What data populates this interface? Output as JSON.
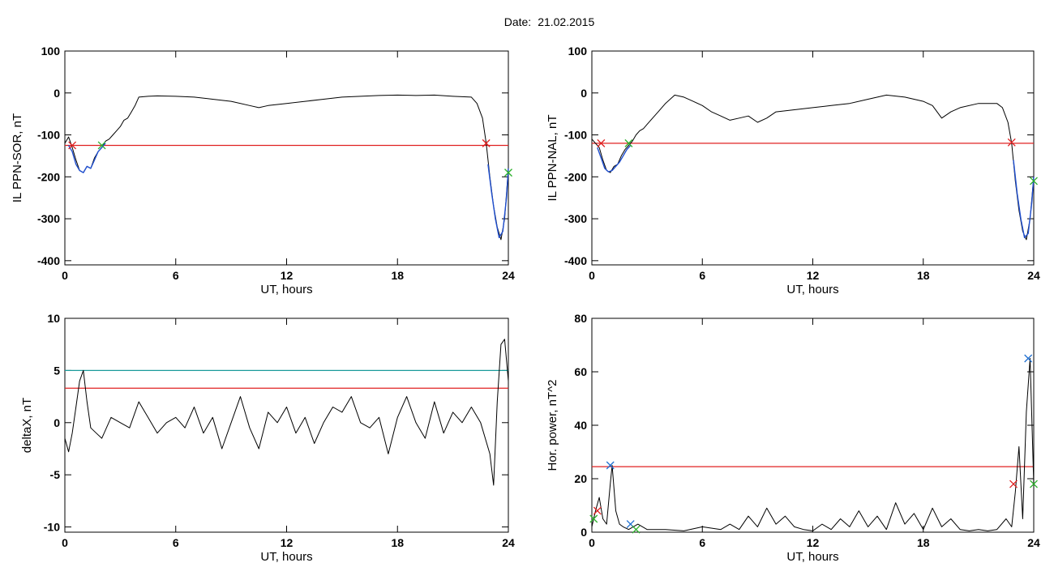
{
  "header": {
    "date_label": "Date:",
    "date_value": "21.02.2015"
  },
  "chart_data": [
    {
      "type": "line",
      "xlabel": "UT, hours",
      "ylabel": "IL PPN-SOR, nT",
      "xlim": [
        0,
        24
      ],
      "ylim": [
        -410,
        100
      ],
      "xticks": [
        0,
        6,
        12,
        18,
        24
      ],
      "yticks": [
        100,
        0,
        -100,
        -200,
        -300,
        -400
      ],
      "threshold": {
        "value": -125,
        "color": "#e02020"
      },
      "series": [
        {
          "color": "#000000",
          "x": [
            0,
            0.2,
            0.4,
            0.6,
            0.8,
            1.0,
            1.2,
            1.4,
            1.6,
            1.8,
            2.0,
            2.2,
            2.4,
            2.6,
            2.8,
            3.0,
            3.2,
            3.4,
            3.6,
            3.8,
            4.0,
            4.5,
            5,
            6,
            7,
            8,
            9,
            10,
            10.5,
            11,
            12,
            13,
            14,
            15,
            16,
            17,
            18,
            19,
            20,
            21,
            22,
            22.3,
            22.6,
            22.8,
            23.0,
            23.2,
            23.4,
            23.6,
            23.8,
            24.0
          ],
          "y": [
            -120,
            -105,
            -130,
            -160,
            -185,
            -190,
            -175,
            -180,
            -155,
            -140,
            -130,
            -115,
            -110,
            -100,
            -90,
            -80,
            -65,
            -60,
            -45,
            -30,
            -10,
            -8,
            -7,
            -8,
            -10,
            -15,
            -20,
            -30,
            -35,
            -30,
            -25,
            -20,
            -15,
            -10,
            -8,
            -6,
            -5,
            -6,
            -5,
            -8,
            -10,
            -25,
            -60,
            -120,
            -200,
            -270,
            -320,
            -350,
            -300,
            -180
          ]
        },
        {
          "color": "#1f4fd0",
          "x": [
            0.2,
            0.4,
            0.6,
            0.8,
            1.0,
            1.2,
            1.4,
            1.6,
            1.8,
            2.0,
            2.2
          ],
          "y": [
            -125,
            -140,
            -170,
            -185,
            -190,
            -175,
            -180,
            -160,
            -140,
            -130,
            -120
          ]
        },
        {
          "color": "#1f4fd0",
          "x": [
            22.9,
            23.1,
            23.3,
            23.5,
            23.7,
            23.9,
            24.0
          ],
          "y": [
            -170,
            -240,
            -300,
            -345,
            -330,
            -250,
            -180
          ]
        }
      ],
      "markers": [
        {
          "x": 0.4,
          "y": -125,
          "color": "#e02020"
        },
        {
          "x": 2.0,
          "y": -125,
          "color": "#2bb02b"
        },
        {
          "x": 22.8,
          "y": -120,
          "color": "#e02020"
        },
        {
          "x": 24.0,
          "y": -190,
          "color": "#2bb02b"
        }
      ]
    },
    {
      "type": "line",
      "xlabel": "UT, hours",
      "ylabel": "IL PPN-NAL, nT",
      "xlim": [
        0,
        24
      ],
      "ylim": [
        -410,
        100
      ],
      "xticks": [
        0,
        6,
        12,
        18,
        24
      ],
      "yticks": [
        100,
        0,
        -100,
        -200,
        -300,
        -400
      ],
      "threshold": {
        "value": -120,
        "color": "#e02020"
      },
      "series": [
        {
          "color": "#000000",
          "x": [
            0,
            0.2,
            0.4,
            0.6,
            0.8,
            1.0,
            1.2,
            1.4,
            1.6,
            1.8,
            2.0,
            2.2,
            2.4,
            2.6,
            2.8,
            3.0,
            3.3,
            3.6,
            4.0,
            4.5,
            5,
            5.5,
            6,
            6.5,
            7,
            7.5,
            8,
            8.5,
            9,
            9.5,
            10,
            11,
            12,
            13,
            14,
            15,
            16,
            17,
            18,
            18.5,
            19,
            19.5,
            20,
            21,
            22,
            22.3,
            22.6,
            22.8,
            23.0,
            23.2,
            23.4,
            23.6,
            23.8,
            24.0
          ],
          "y": [
            -110,
            -120,
            -130,
            -160,
            -185,
            -190,
            -175,
            -170,
            -150,
            -135,
            -125,
            -115,
            -100,
            -90,
            -85,
            -75,
            -60,
            -45,
            -25,
            -5,
            -10,
            -20,
            -30,
            -45,
            -55,
            -65,
            -60,
            -55,
            -70,
            -60,
            -45,
            -40,
            -35,
            -30,
            -25,
            -15,
            -5,
            -10,
            -20,
            -30,
            -60,
            -45,
            -35,
            -25,
            -25,
            -35,
            -70,
            -120,
            -210,
            -280,
            -330,
            -350,
            -300,
            -200
          ]
        },
        {
          "color": "#1f4fd0",
          "x": [
            0.3,
            0.5,
            0.7,
            0.9,
            1.1,
            1.3,
            1.5,
            1.7,
            1.9,
            2.1
          ],
          "y": [
            -130,
            -155,
            -180,
            -188,
            -185,
            -175,
            -165,
            -150,
            -135,
            -125
          ]
        },
        {
          "color": "#1f4fd0",
          "x": [
            22.9,
            23.1,
            23.3,
            23.5,
            23.7,
            23.9,
            24.0
          ],
          "y": [
            -160,
            -240,
            -300,
            -345,
            -335,
            -260,
            -200
          ]
        }
      ],
      "markers": [
        {
          "x": 0.5,
          "y": -120,
          "color": "#e02020"
        },
        {
          "x": 2.0,
          "y": -120,
          "color": "#2bb02b"
        },
        {
          "x": 22.8,
          "y": -118,
          "color": "#e02020"
        },
        {
          "x": 24.0,
          "y": -210,
          "color": "#2bb02b"
        }
      ]
    },
    {
      "type": "line",
      "xlabel": "UT, hours",
      "ylabel": "deltaX, nT",
      "xlim": [
        0,
        24
      ],
      "ylim": [
        -10.5,
        10
      ],
      "xticks": [
        0,
        6,
        12,
        18,
        24
      ],
      "yticks": [
        10,
        5,
        0,
        -5,
        -10
      ],
      "thresholds": [
        {
          "value": 5.0,
          "color": "#1a9a9a"
        },
        {
          "value": 3.3,
          "color": "#e02020"
        }
      ],
      "series": [
        {
          "color": "#000000",
          "x": [
            0,
            0.2,
            0.4,
            0.6,
            0.8,
            1.0,
            1.2,
            1.4,
            1.7,
            2.0,
            2.5,
            3.0,
            3.5,
            4.0,
            4.5,
            5.0,
            5.5,
            6.0,
            6.5,
            7.0,
            7.5,
            8.0,
            8.5,
            9.0,
            9.5,
            10.0,
            10.5,
            11.0,
            11.5,
            12.0,
            12.5,
            13.0,
            13.5,
            14.0,
            14.5,
            15.0,
            15.5,
            16.0,
            16.5,
            17.0,
            17.5,
            18.0,
            18.5,
            19.0,
            19.5,
            20.0,
            20.5,
            21.0,
            21.5,
            22.0,
            22.5,
            23.0,
            23.2,
            23.4,
            23.6,
            23.8,
            24.0
          ],
          "y": [
            -1.5,
            -2.8,
            -1.0,
            1.5,
            4.0,
            5.0,
            2.0,
            -0.5,
            -1.0,
            -1.5,
            0.5,
            0.0,
            -0.5,
            2.0,
            0.5,
            -1.0,
            0.0,
            0.5,
            -0.5,
            1.5,
            -1.0,
            0.5,
            -2.5,
            0.0,
            2.5,
            -0.5,
            -2.5,
            1.0,
            0.0,
            1.5,
            -1.0,
            0.5,
            -2.0,
            0.0,
            1.5,
            1.0,
            2.5,
            0.0,
            -0.5,
            0.5,
            -3.0,
            0.5,
            2.5,
            0.0,
            -1.5,
            2.0,
            -1.0,
            1.0,
            0.0,
            1.5,
            0.0,
            -3.0,
            -6.0,
            2.0,
            7.5,
            8.0,
            4.0
          ]
        }
      ]
    },
    {
      "type": "line",
      "xlabel": "UT, hours",
      "ylabel": "Hor. power, nT^2",
      "xlim": [
        0,
        24
      ],
      "ylim": [
        0,
        80
      ],
      "xticks": [
        0,
        6,
        12,
        18,
        24
      ],
      "yticks": [
        80,
        60,
        40,
        20,
        0
      ],
      "threshold": {
        "value": 24.5,
        "color": "#e02020"
      },
      "series": [
        {
          "color": "#000000",
          "x": [
            0,
            0.2,
            0.4,
            0.6,
            0.8,
            1.0,
            1.1,
            1.3,
            1.5,
            1.7,
            2.0,
            2.5,
            3.0,
            4,
            5,
            6,
            7,
            7.5,
            8,
            8.5,
            9,
            9.5,
            10,
            10.5,
            11,
            11.5,
            12,
            12.5,
            13,
            13.5,
            14,
            14.5,
            15,
            15.5,
            16,
            16.5,
            17,
            17.5,
            18,
            18.5,
            19,
            19.5,
            20,
            20.5,
            21,
            21.5,
            22,
            22.5,
            22.8,
            23.0,
            23.2,
            23.4,
            23.6,
            23.8,
            24.0
          ],
          "y": [
            2,
            8,
            13,
            5,
            3,
            18,
            25,
            8,
            3,
            2,
            1,
            3,
            1,
            1,
            0.5,
            2,
            1,
            3,
            1,
            6,
            2,
            9,
            3,
            6,
            2,
            1,
            0.5,
            3,
            1,
            5,
            2,
            8,
            2,
            6,
            1,
            11,
            3,
            7,
            1,
            9,
            2,
            5,
            1,
            0.5,
            1,
            0.5,
            1,
            5,
            2,
            15,
            32,
            5,
            45,
            65,
            18
          ]
        }
      ],
      "markers": [
        {
          "x": 0.1,
          "y": 5,
          "color": "#2bb02b"
        },
        {
          "x": 0.3,
          "y": 8,
          "color": "#e02020"
        },
        {
          "x": 1.0,
          "y": 25,
          "color": "#1f6fd0"
        },
        {
          "x": 2.1,
          "y": 3,
          "color": "#1f6fd0"
        },
        {
          "x": 2.4,
          "y": 1,
          "color": "#2bb02b"
        },
        {
          "x": 22.9,
          "y": 18,
          "color": "#e02020"
        },
        {
          "x": 23.7,
          "y": 65,
          "color": "#1f6fd0"
        },
        {
          "x": 24.0,
          "y": 18,
          "color": "#2bb02b"
        }
      ]
    }
  ]
}
